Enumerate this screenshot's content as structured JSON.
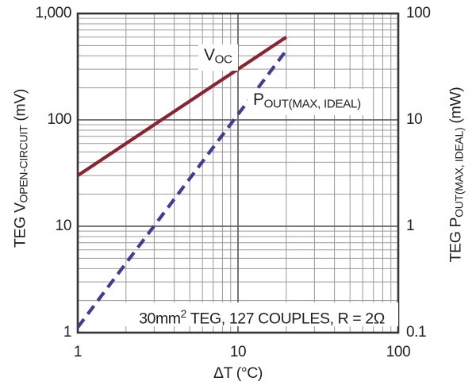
{
  "colors": {
    "voc_line": "#8b2332",
    "pout_line": "#3e3e96",
    "grid_minor": "#999999",
    "grid_major": "#666666",
    "border": "#363636",
    "text": "#231f20",
    "background": "#ffffff"
  },
  "labels": {
    "left_title": {
      "base": "TEG V",
      "sub": "OPEN-CIRCUIT",
      "unit": " (mV)"
    },
    "right_title": {
      "base": "TEG P",
      "sub": "OUT(MAX, IDEAL)",
      "unit": " (mW)"
    },
    "x_title": "ΔT (°C)",
    "voc_curve": {
      "base": "V",
      "sub": "OC"
    },
    "pout_curve": {
      "base": "P",
      "sub": "OUT(MAX, IDEAL)"
    },
    "annotation": {
      "base": "30mm",
      "sup": "2",
      "rest": " TEG, 127 COUPLES, R = 2Ω"
    }
  },
  "chart_data": {
    "type": "line",
    "title": "",
    "annotation": "30mm2 TEG, 127 COUPLES, R = 2Ω",
    "grid": "full log-log minor grid on",
    "legend_position": "inline curve labels",
    "x_axis": {
      "label": "ΔT (°C)",
      "scale": "log",
      "range": [
        1,
        100
      ],
      "ticks": [
        "1",
        "10",
        "100"
      ]
    },
    "y_axis_left": {
      "label": "TEG VOPEN-CIRCUIT (mV)",
      "scale": "log",
      "range": [
        1,
        1000
      ],
      "ticks": [
        "1,000",
        "100",
        "10",
        "1"
      ]
    },
    "y_axis_right": {
      "label": "TEG POUT(MAX, IDEAL) (mW)",
      "scale": "log",
      "range": [
        0.1,
        100
      ],
      "ticks": [
        "100",
        "10",
        "1",
        "0.1"
      ]
    },
    "series": [
      {
        "name": "VOC",
        "axis": "left",
        "units": "mV",
        "style": "solid",
        "color": "#8b2332",
        "x": [
          1,
          1.5,
          2,
          3,
          5,
          7,
          10,
          15,
          20
        ],
        "y": [
          30,
          45,
          60,
          90,
          150,
          210,
          300,
          450,
          600
        ]
      },
      {
        "name": "POUT(MAX, IDEAL)",
        "axis": "right",
        "units": "mW",
        "style": "dashed",
        "color": "#3e3e96",
        "x": [
          1,
          1.5,
          2,
          3,
          5,
          7,
          10,
          15,
          20
        ],
        "y": [
          0.112,
          0.253,
          0.45,
          1.01,
          2.81,
          5.51,
          11.25,
          25.3,
          45
        ]
      }
    ]
  }
}
